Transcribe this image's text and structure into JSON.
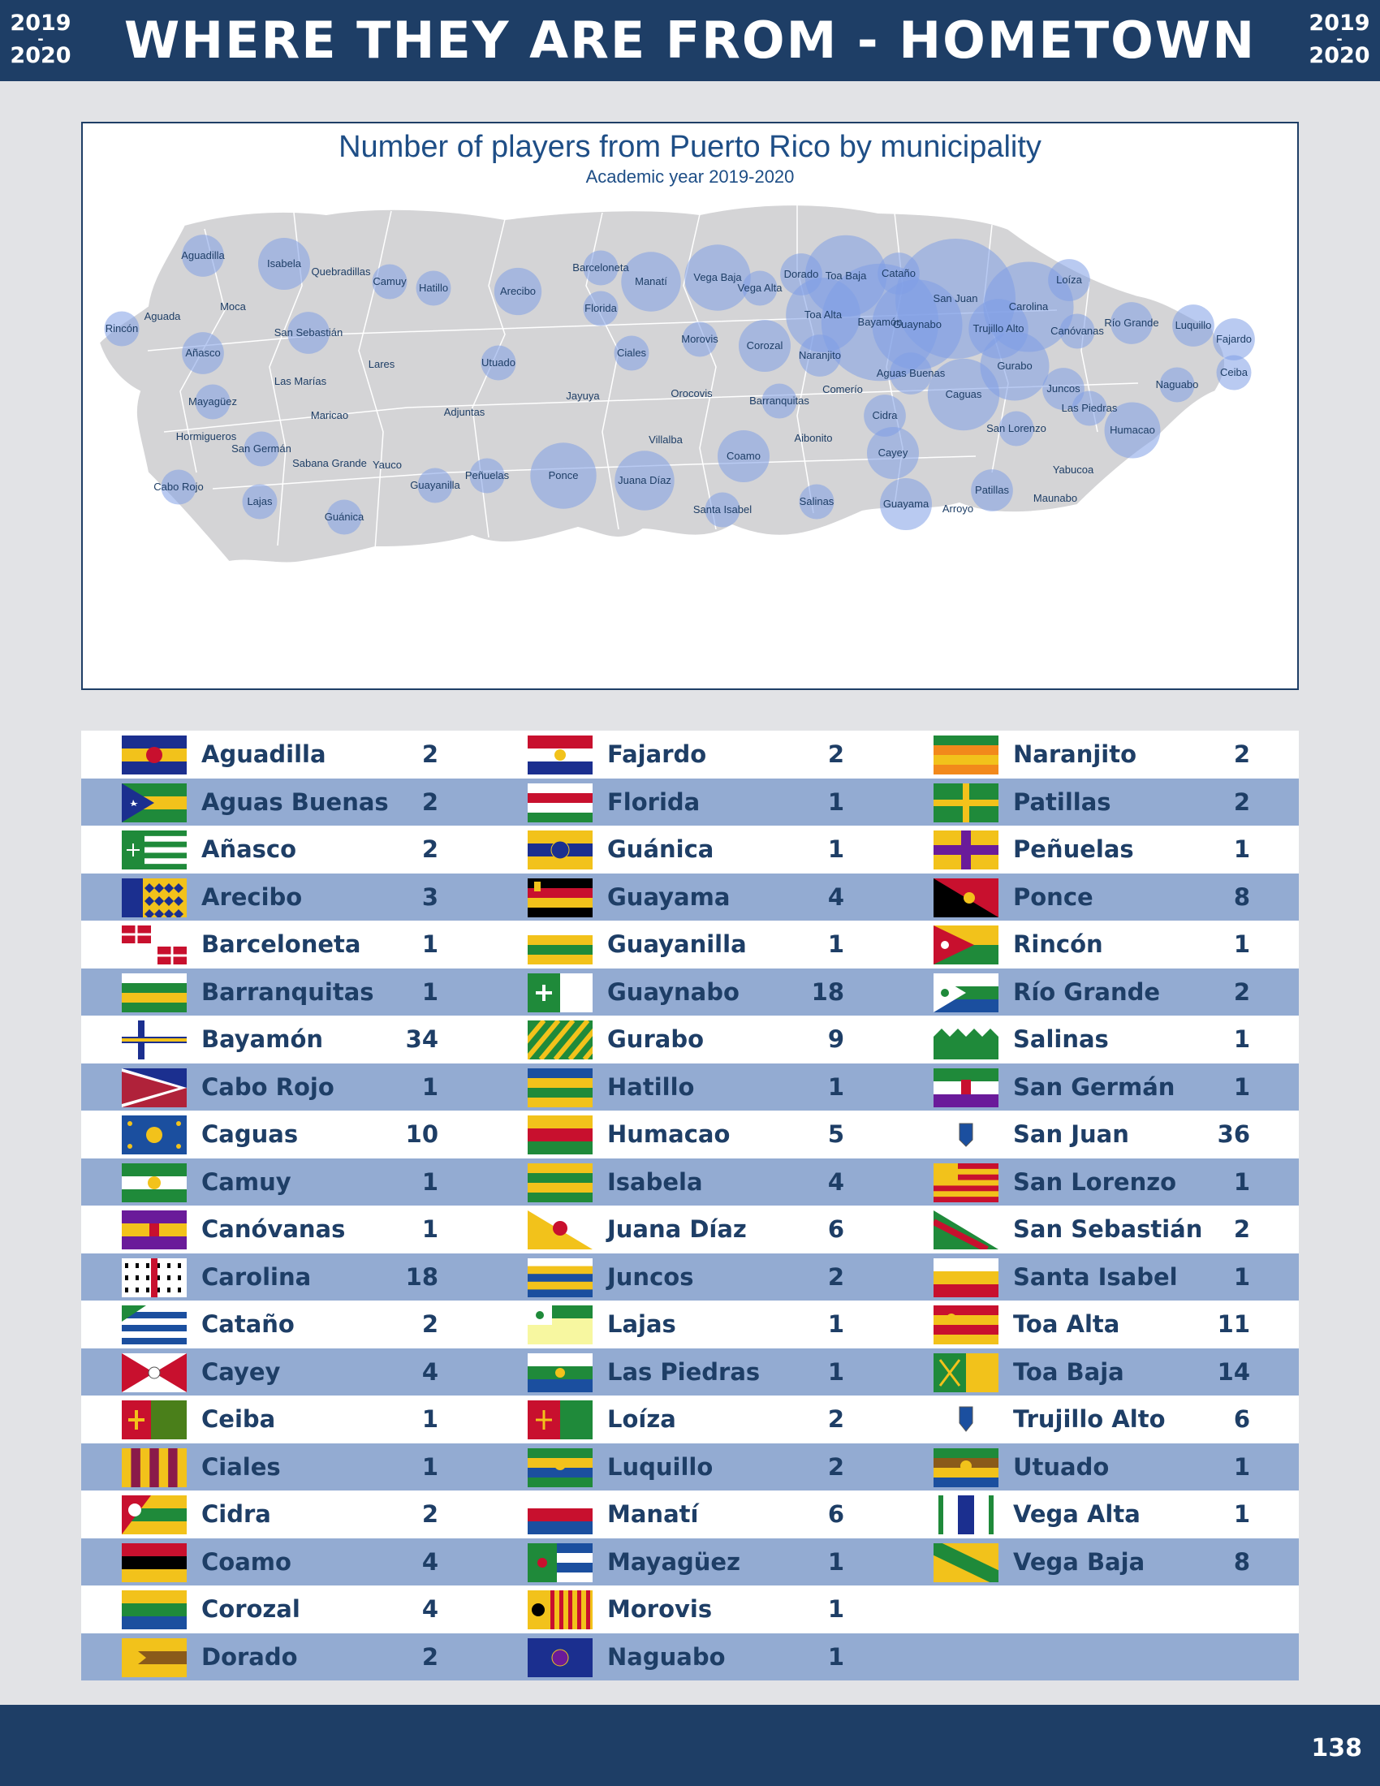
{
  "header": {
    "title": "WHERE THEY ARE FROM - HOMETOWN",
    "year_top": "2019",
    "year_dash": "-",
    "year_bottom": "2020"
  },
  "map": {
    "title": "Number of players from Puerto Rico by municipality",
    "subtitle": "Academic year 2019-2020",
    "bubble_color": "#7f9fe6",
    "land_color": "#d4d4d6",
    "labels": [
      "Aguadilla",
      "Isabela",
      "Quebradillas",
      "Camuy",
      "Hatillo",
      "Arecibo",
      "Barceloneta",
      "Manatí",
      "Florida",
      "Vega Baja",
      "Vega Alta",
      "Dorado",
      "Toa Baja",
      "Cataño",
      "Loíza",
      "San Juan",
      "Carolina",
      "Toa Alta",
      "Bayamón",
      "Guaynabo",
      "Trujillo Alto",
      "Río Grande",
      "Luquillo",
      "Canóvanas",
      "Fajardo",
      "Moca",
      "Aguada",
      "Rincón",
      "San Sebastián",
      "Añasco",
      "Lares",
      "Utuado",
      "Ciales",
      "Morovis",
      "Corozal",
      "Naranjito",
      "Gurabo",
      "Aguas Buenas",
      "Ceiba",
      "Naguabo",
      "Las Marías",
      "Mayagüez",
      "Jayuya",
      "Orocovis",
      "Comerío",
      "Barranquitas",
      "Caguas",
      "Juncos",
      "Las Piedras",
      "Maricao",
      "Adjuntas",
      "Cidra",
      "Villalba",
      "Aibonito",
      "San Lorenzo",
      "Humacao",
      "Hormigueros",
      "San Germán",
      "Coamo",
      "Cayey",
      "Yabucoa",
      "Sabana Grande",
      "Yauco",
      "Peñuelas",
      "Ponce",
      "Juana Díaz",
      "Cabo Rojo",
      "Guayanilla",
      "Patillas",
      "Lajas",
      "Salinas",
      "Guayama",
      "Maunabo",
      "Santa Isabel",
      "Arroyo",
      "Guánica"
    ]
  },
  "rows": [
    {
      "name": "Aguadilla",
      "count": "2",
      "flag": "aguadilla-flag"
    },
    {
      "name": "Aguas Buenas",
      "count": "2",
      "flag": "aguas-buenas-flag"
    },
    {
      "name": "Añasco",
      "count": "2",
      "flag": "anasco-flag"
    },
    {
      "name": "Arecibo",
      "count": "3",
      "flag": "arecibo-flag"
    },
    {
      "name": "Barceloneta",
      "count": "1",
      "flag": "barceloneta-flag"
    },
    {
      "name": "Barranquitas",
      "count": "1",
      "flag": "barranquitas-flag"
    },
    {
      "name": "Bayamón",
      "count": "34",
      "flag": "bayamon-flag"
    },
    {
      "name": "Cabo Rojo",
      "count": "1",
      "flag": "cabo-rojo-flag"
    },
    {
      "name": "Caguas",
      "count": "10",
      "flag": "caguas-flag"
    },
    {
      "name": "Camuy",
      "count": "1",
      "flag": "camuy-flag"
    },
    {
      "name": "Canóvanas",
      "count": "1",
      "flag": "canovanas-flag"
    },
    {
      "name": "Carolina",
      "count": "18",
      "flag": "carolina-flag"
    },
    {
      "name": "Cataño",
      "count": "2",
      "flag": "catano-flag"
    },
    {
      "name": "Cayey",
      "count": "4",
      "flag": "cayey-flag"
    },
    {
      "name": "Ceiba",
      "count": "1",
      "flag": "ceiba-flag"
    },
    {
      "name": "Ciales",
      "count": "1",
      "flag": "ciales-flag"
    },
    {
      "name": "Cidra",
      "count": "2",
      "flag": "cidra-flag"
    },
    {
      "name": "Coamo",
      "count": "4",
      "flag": "coamo-flag"
    },
    {
      "name": "Corozal",
      "count": "4",
      "flag": "corozal-flag"
    },
    {
      "name": "Dorado",
      "count": "2",
      "flag": "dorado-flag"
    },
    {
      "name": "Fajardo",
      "count": "2",
      "flag": "fajardo-flag"
    },
    {
      "name": "Florida",
      "count": "1",
      "flag": "florida-flag"
    },
    {
      "name": "Guánica",
      "count": "1",
      "flag": "guanica-flag"
    },
    {
      "name": "Guayama",
      "count": "4",
      "flag": "guayama-flag"
    },
    {
      "name": "Guayanilla",
      "count": "1",
      "flag": "guayanilla-flag"
    },
    {
      "name": "Guaynabo",
      "count": "18",
      "flag": "guaynabo-flag"
    },
    {
      "name": "Gurabo",
      "count": "9",
      "flag": "gurabo-flag"
    },
    {
      "name": "Hatillo",
      "count": "1",
      "flag": "hatillo-flag"
    },
    {
      "name": "Humacao",
      "count": "5",
      "flag": "humacao-flag"
    },
    {
      "name": "Isabela",
      "count": "4",
      "flag": "isabela-flag"
    },
    {
      "name": "Juana Díaz",
      "count": "6",
      "flag": "juana-diaz-flag"
    },
    {
      "name": "Juncos",
      "count": "2",
      "flag": "juncos-flag"
    },
    {
      "name": "Lajas",
      "count": "1",
      "flag": "lajas-flag"
    },
    {
      "name": "Las Piedras",
      "count": "1",
      "flag": "las-piedras-flag"
    },
    {
      "name": "Loíza",
      "count": "2",
      "flag": "loiza-flag"
    },
    {
      "name": "Luquillo",
      "count": "2",
      "flag": "luquillo-flag"
    },
    {
      "name": "Manatí",
      "count": "6",
      "flag": "manati-flag"
    },
    {
      "name": "Mayagüez",
      "count": "1",
      "flag": "mayaguez-flag"
    },
    {
      "name": "Morovis",
      "count": "1",
      "flag": "morovis-flag"
    },
    {
      "name": "Naguabo",
      "count": "1",
      "flag": "naguabo-flag"
    },
    {
      "name": "Naranjito",
      "count": "2",
      "flag": "naranjito-flag"
    },
    {
      "name": "Patillas",
      "count": "2",
      "flag": "patillas-flag"
    },
    {
      "name": "Peñuelas",
      "count": "1",
      "flag": "penuelas-flag"
    },
    {
      "name": "Ponce",
      "count": "8",
      "flag": "ponce-flag"
    },
    {
      "name": "Rincón",
      "count": "1",
      "flag": "rincon-flag"
    },
    {
      "name": "Río Grande",
      "count": "2",
      "flag": "rio-grande-flag"
    },
    {
      "name": "Salinas",
      "count": "1",
      "flag": "salinas-flag"
    },
    {
      "name": "San Germán",
      "count": "1",
      "flag": "san-german-flag"
    },
    {
      "name": "San Juan",
      "count": "36",
      "flag": "san-juan-flag"
    },
    {
      "name": "San Lorenzo",
      "count": "1",
      "flag": "san-lorenzo-flag"
    },
    {
      "name": "San Sebastián",
      "count": "2",
      "flag": "san-sebastian-flag"
    },
    {
      "name": "Santa Isabel",
      "count": "1",
      "flag": "santa-isabel-flag"
    },
    {
      "name": "Toa Alta",
      "count": "11",
      "flag": "toa-alta-flag"
    },
    {
      "name": "Toa Baja",
      "count": "14",
      "flag": "toa-baja-flag"
    },
    {
      "name": "Trujillo Alto",
      "count": "6",
      "flag": "trujillo-alto-flag"
    },
    {
      "name": "Utuado",
      "count": "1",
      "flag": "utuado-flag"
    },
    {
      "name": "Vega Alta",
      "count": "1",
      "flag": "vega-alta-flag"
    },
    {
      "name": "Vega Baja",
      "count": "8",
      "flag": "vega-baja-flag"
    }
  ],
  "footer": {
    "page_number": "138"
  }
}
